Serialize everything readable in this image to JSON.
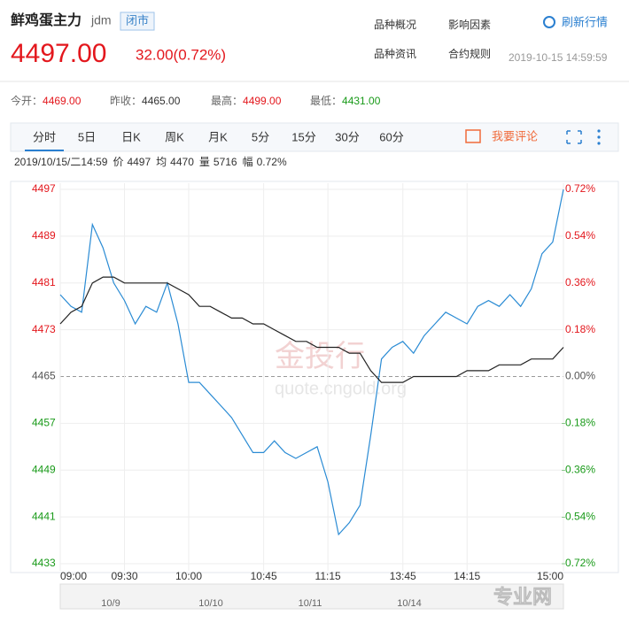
{
  "header": {
    "name": "鲜鸡蛋主力",
    "code": "jdm",
    "status": "闭市",
    "price": "4497.00",
    "change": "32.00(0.72%)",
    "links": [
      "品种概况",
      "影响因素",
      "品种资讯",
      "合约规则"
    ],
    "refresh": "刷新行情",
    "timestamp": "2019-10-15 14:59:59"
  },
  "stats": [
    {
      "label": "今开：",
      "value": "4469.00"
    },
    {
      "label": "昨收：",
      "value": "4465.00"
    },
    {
      "label": "最高：",
      "value": "4499.00"
    },
    {
      "label": "最低：",
      "value": "4431.00"
    }
  ],
  "tabs": [
    "分时",
    "5日",
    "日K",
    "周K",
    "月K",
    "5分",
    "15分",
    "30分",
    "60分"
  ],
  "comment": "我要评论",
  "info": [
    "2019/10/15/二14:59",
    "价",
    "4497",
    "均",
    "4470",
    "量",
    "5716",
    "幅",
    "0.72%"
  ],
  "watermark": [
    "金投行",
    "quote.cngold.org"
  ],
  "overlay": "专业网",
  "navigator": [
    "10/9",
    "10/10",
    "10/11",
    "10/14"
  ],
  "chart_data": {
    "type": "line",
    "base": 4465,
    "up_color": "#e3171d",
    "down_color": "#199a19",
    "flat_color": "#555555",
    "grid": true,
    "x": [
      "09:00",
      "09:05",
      "09:10",
      "09:15",
      "09:20",
      "09:25",
      "09:30",
      "09:35",
      "09:40",
      "09:45",
      "09:50",
      "09:55",
      "10:00",
      "10:05",
      "10:10",
      "10:15",
      "10:30",
      "10:35",
      "10:40",
      "10:45",
      "10:50",
      "10:55",
      "11:00",
      "11:05",
      "11:10",
      "11:15",
      "11:20",
      "11:25",
      "11:30",
      "13:30",
      "13:35",
      "13:40",
      "13:45",
      "13:50",
      "13:55",
      "14:00",
      "14:05",
      "14:10",
      "14:15",
      "14:20",
      "14:25",
      "14:30",
      "14:35",
      "14:40",
      "14:45",
      "14:50",
      "14:55",
      "15:00"
    ],
    "xticks": [
      "09:00",
      "09:30",
      "10:00",
      "10:45",
      "11:15",
      "13:45",
      "14:15",
      "15:00"
    ],
    "ylim": [
      4433,
      4497
    ],
    "yticks": [
      4433,
      4441,
      4449,
      4457,
      4465,
      4473,
      4481,
      4489,
      4497
    ],
    "y2lim": [
      -0.72,
      0.72
    ],
    "y2ticks": [
      {
        "value": -0.72,
        "label": "-0.72%"
      },
      {
        "value": -0.54,
        "label": "-0.54%"
      },
      {
        "value": -0.36,
        "label": "-0.36%"
      },
      {
        "value": -0.18,
        "label": "-0.18%"
      },
      {
        "value": 0,
        "label": "0.00%"
      },
      {
        "value": 0.18,
        "label": "0.18%"
      },
      {
        "value": 0.36,
        "label": "0.36%"
      },
      {
        "value": 0.54,
        "label": "0.54%"
      },
      {
        "value": 0.72,
        "label": "0.72%"
      }
    ],
    "series": [
      {
        "name": "价",
        "color": "#2a8bd4",
        "values": [
          4479,
          4477,
          4476,
          4491,
          4487,
          4481,
          4478,
          4474,
          4477,
          4476,
          4481,
          4474,
          4464,
          4464,
          4462,
          4460,
          4458,
          4455,
          4452,
          4452,
          4454,
          4452,
          4451,
          4452,
          4453,
          4447,
          4438,
          4440,
          4443,
          4455,
          4468,
          4470,
          4471,
          4469,
          4472,
          4474,
          4476,
          4475,
          4474,
          4477,
          4478,
          4477,
          4479,
          4477,
          4480,
          4486,
          4488,
          4497
        ]
      },
      {
        "name": "均",
        "color": "#222222",
        "values": [
          4474,
          4476,
          4477,
          4481,
          4482,
          4482,
          4481,
          4481,
          4481,
          4481,
          4481,
          4480,
          4479,
          4477,
          4477,
          4476,
          4475,
          4475,
          4474,
          4474,
          4473,
          4472,
          4471,
          4471,
          4470,
          4470,
          4470,
          4469,
          4469,
          4466,
          4464,
          4464,
          4464,
          4465,
          4465,
          4465,
          4465,
          4465,
          4466,
          4466,
          4466,
          4467,
          4467,
          4467,
          4468,
          4468,
          4468,
          4470
        ]
      }
    ]
  }
}
